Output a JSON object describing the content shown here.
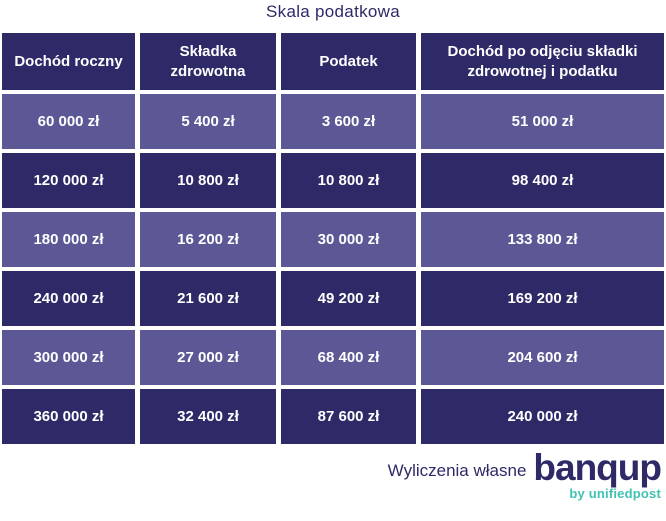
{
  "chart_data": {
    "type": "table",
    "title": "Skala podatkowa",
    "columns": [
      "Dochód roczny",
      "Składka zdrowotna",
      "Podatek",
      "Dochód po odjęciu składki zdrowotnej i podatku"
    ],
    "rows": [
      [
        "60 000 zł",
        "5 400 zł",
        "3 600 zł",
        "51 000 zł"
      ],
      [
        "120 000 zł",
        "10 800 zł",
        "10 800 zł",
        "98 400 zł"
      ],
      [
        "180 000 zł",
        "16 200 zł",
        "30 000 zł",
        "133 800 zł"
      ],
      [
        "240 000 zł",
        "21 600 zł",
        "49 200 zł",
        "169 200 zł"
      ],
      [
        "300 000 zł",
        "27 000 zł",
        "68 400 zł",
        "204 600 zł"
      ],
      [
        "360 000 zł",
        "32 400 zł",
        "87 600 zł",
        "240 000 zł"
      ]
    ],
    "source": "Wyliczenia własne",
    "layout": {
      "striping": "odd rows light purple, even rows dark navy, header dark navy",
      "grid": "white gaps between cells"
    }
  },
  "footer": {
    "source_note": "Wyliczenia własne",
    "logo_text": "banqup",
    "logo_subtext": "by unifiedpost"
  },
  "colors": {
    "navy": "#2e2a68",
    "light_purple": "#5c5896",
    "teal": "#3fc2b2",
    "text_on_cells": "#ffffff",
    "background": "#ffffff"
  }
}
